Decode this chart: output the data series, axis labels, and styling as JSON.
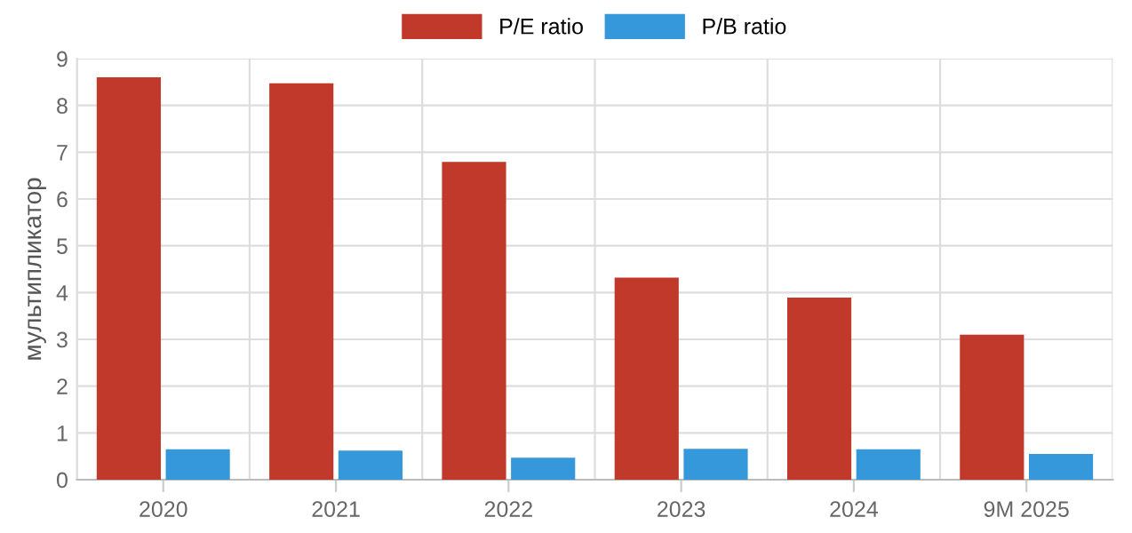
{
  "chart_data": {
    "type": "bar",
    "ylabel": "мультипликатор",
    "categories": [
      "2020",
      "2021",
      "2022",
      "2023",
      "2024",
      "9M 2025"
    ],
    "series": [
      {
        "name": "P/E ratio",
        "color": "#c0392b",
        "values": [
          8.58,
          8.45,
          6.77,
          4.3,
          3.87,
          3.08
        ]
      },
      {
        "name": "P/B ratio",
        "color": "#3498db",
        "values": [
          0.63,
          0.6,
          0.45,
          0.64,
          0.63,
          0.53
        ]
      }
    ],
    "ylim": [
      0,
      9
    ],
    "yticks": [
      0,
      1,
      2,
      3,
      4,
      5,
      6,
      7,
      8,
      9
    ],
    "grid": true,
    "legend": "top"
  }
}
